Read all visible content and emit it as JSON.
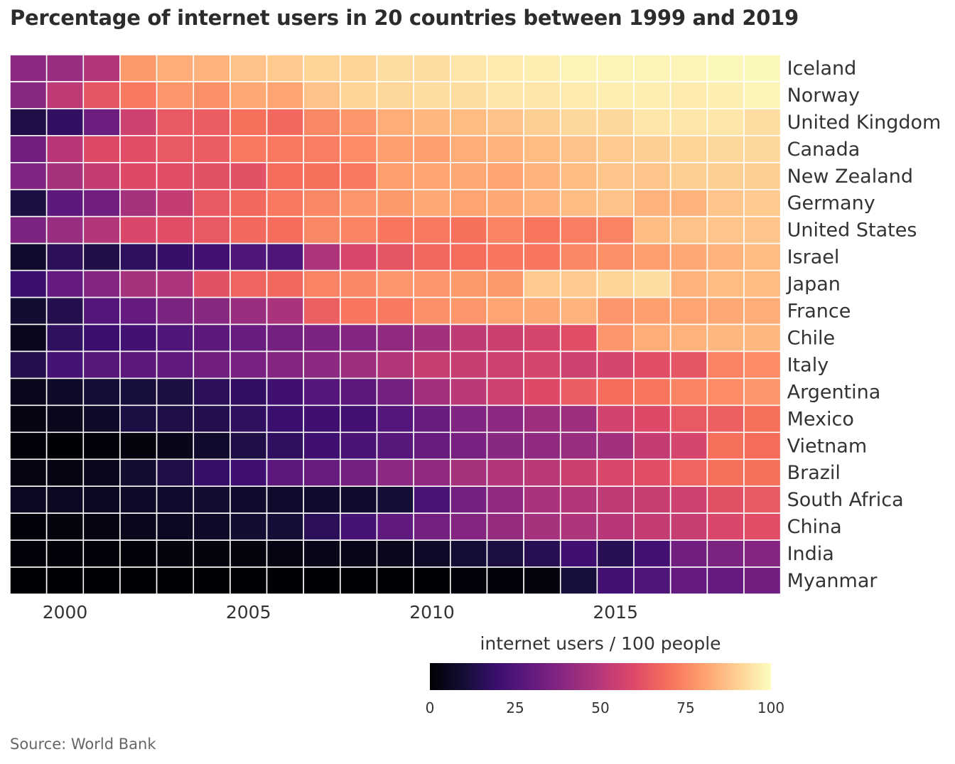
{
  "chart_data": {
    "type": "heatmap",
    "title": "Percentage of internet users in 20 countries between 1999 and 2019",
    "source": "Source: World Bank",
    "x": [
      1999,
      2000,
      2001,
      2002,
      2003,
      2004,
      2005,
      2006,
      2007,
      2008,
      2009,
      2010,
      2011,
      2012,
      2013,
      2014,
      2015,
      2016,
      2017,
      2018,
      2019
    ],
    "x_ticks": [
      "2000",
      "2005",
      "2010",
      "2015"
    ],
    "y": [
      "Iceland",
      "Norway",
      "United Kingdom",
      "Canada",
      "New Zealand",
      "Germany",
      "United States",
      "Israel",
      "Japan",
      "France",
      "Chile",
      "Italy",
      "Argentina",
      "Mexico",
      "Vietnam",
      "Brazil",
      "South Africa",
      "China",
      "India",
      "Myanmar"
    ],
    "values": [
      [
        40,
        43,
        49,
        79,
        83,
        84,
        87,
        89,
        91,
        91,
        93,
        93,
        95,
        96,
        97,
        98,
        98,
        98,
        98,
        99,
        99
      ],
      [
        39,
        52,
        63,
        72,
        78,
        77,
        82,
        81,
        87,
        91,
        92,
        93,
        93,
        95,
        95,
        96,
        97,
        97,
        96,
        97,
        98
      ],
      [
        13,
        18,
        32,
        56,
        64,
        65,
        70,
        68,
        75,
        78,
        83,
        85,
        86,
        87,
        90,
        92,
        92,
        95,
        95,
        95,
        93
      ],
      [
        33,
        50,
        60,
        61,
        64,
        65,
        72,
        72,
        73,
        76,
        80,
        80,
        83,
        84,
        86,
        87,
        89,
        90,
        91,
        92,
        92
      ],
      [
        37,
        46,
        53,
        60,
        61,
        62,
        62,
        69,
        70,
        72,
        80,
        81,
        82,
        81,
        84,
        86,
        88,
        88,
        90,
        90,
        90
      ],
      [
        12,
        28,
        33,
        46,
        53,
        64,
        68,
        72,
        75,
        78,
        79,
        82,
        81,
        82,
        84,
        86,
        87,
        84,
        84,
        88,
        89
      ],
      [
        36,
        43,
        49,
        59,
        61,
        64,
        68,
        69,
        75,
        74,
        71,
        72,
        70,
        74,
        71,
        73,
        74,
        86,
        87,
        88,
        88
      ],
      [
        8,
        16,
        13,
        17,
        19,
        22,
        25,
        25,
        48,
        59,
        63,
        68,
        69,
        71,
        71,
        75,
        77,
        80,
        82,
        84,
        86
      ],
      [
        20,
        30,
        38,
        46,
        48,
        62,
        67,
        68,
        74,
        75,
        78,
        78,
        79,
        79,
        89,
        89,
        91,
        93,
        84,
        86,
        86
      ],
      [
        9,
        14,
        26,
        30,
        36,
        39,
        43,
        47,
        66,
        71,
        72,
        77,
        78,
        81,
        82,
        84,
        78,
        80,
        81,
        82,
        83
      ],
      [
        5,
        17,
        20,
        22,
        25,
        28,
        31,
        34,
        36,
        38,
        41,
        45,
        52,
        55,
        58,
        61,
        78,
        83,
        84,
        85,
        85
      ],
      [
        14,
        23,
        27,
        28,
        29,
        33,
        35,
        38,
        40,
        44,
        49,
        54,
        54,
        56,
        58,
        56,
        58,
        61,
        63,
        74,
        76
      ],
      [
        5,
        7,
        10,
        11,
        12,
        16,
        18,
        21,
        26,
        28,
        34,
        45,
        51,
        56,
        60,
        65,
        69,
        71,
        74,
        76,
        78
      ],
      [
        3,
        5,
        7,
        12,
        13,
        14,
        17,
        20,
        21,
        22,
        26,
        31,
        37,
        40,
        44,
        44,
        57,
        60,
        64,
        66,
        70
      ],
      [
        1,
        0,
        1,
        2,
        4,
        8,
        13,
        17,
        21,
        24,
        27,
        31,
        35,
        39,
        41,
        43,
        45,
        53,
        58,
        70,
        69
      ],
      [
        3,
        3,
        5,
        9,
        13,
        19,
        21,
        28,
        31,
        34,
        40,
        41,
        46,
        49,
        51,
        55,
        59,
        61,
        67,
        70,
        70
      ],
      [
        6,
        6,
        6,
        7,
        8,
        9,
        8,
        8,
        8,
        8,
        10,
        24,
        34,
        41,
        47,
        49,
        52,
        54,
        56,
        62,
        64
      ],
      [
        1,
        2,
        3,
        5,
        6,
        7,
        9,
        10,
        16,
        23,
        29,
        34,
        38,
        42,
        46,
        48,
        50,
        53,
        54,
        59,
        61
      ],
      [
        1,
        1,
        1,
        1,
        2,
        2,
        2,
        3,
        4,
        4,
        5,
        7,
        10,
        12,
        15,
        21,
        15,
        22,
        33,
        36,
        38
      ],
      [
        0,
        0,
        0,
        0,
        0,
        0,
        0,
        0,
        0,
        0,
        0,
        0,
        1,
        1,
        2,
        11,
        22,
        25,
        30,
        30,
        33
      ]
    ],
    "colorbar": {
      "title": "internet users / 100 people",
      "range": [
        0,
        100
      ],
      "ticks": [
        "0",
        "25",
        "50",
        "75",
        "100"
      ],
      "colormap": "magma"
    },
    "grid": false
  }
}
